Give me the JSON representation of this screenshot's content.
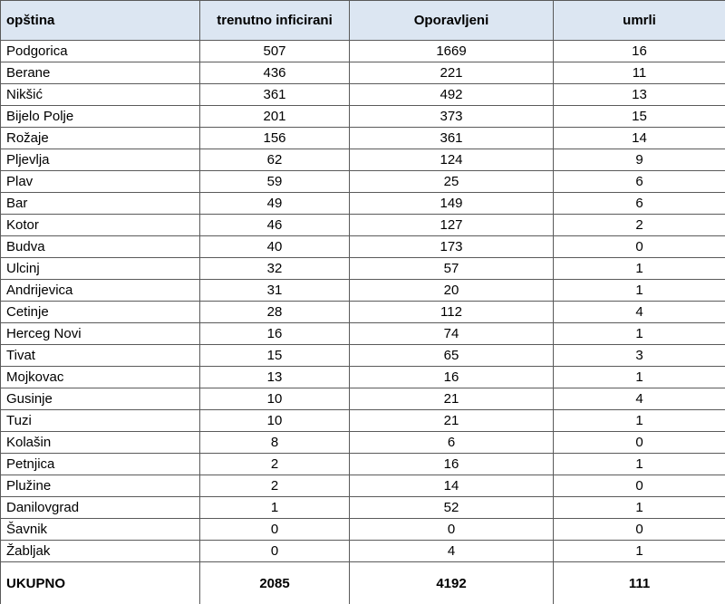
{
  "table": {
    "header": [
      "opština",
      "trenutno inficirani",
      "Oporavljeni",
      "umrli"
    ],
    "rows": [
      [
        "Podgorica",
        507,
        1669,
        16
      ],
      [
        "Berane",
        436,
        221,
        11
      ],
      [
        "Nikšić",
        361,
        492,
        13
      ],
      [
        "Bijelo Polje",
        201,
        373,
        15
      ],
      [
        "Rožaje",
        156,
        361,
        14
      ],
      [
        "Pljevlja",
        62,
        124,
        9
      ],
      [
        "Plav",
        59,
        25,
        6
      ],
      [
        "Bar",
        49,
        149,
        6
      ],
      [
        "Kotor",
        46,
        127,
        2
      ],
      [
        "Budva",
        40,
        173,
        0
      ],
      [
        "Ulcinj",
        32,
        57,
        1
      ],
      [
        "Andrijevica",
        31,
        20,
        1
      ],
      [
        "Cetinje",
        28,
        112,
        4
      ],
      [
        "Herceg Novi",
        16,
        74,
        1
      ],
      [
        "Tivat",
        15,
        65,
        3
      ],
      [
        "Mojkovac",
        13,
        16,
        1
      ],
      [
        "Gusinje",
        10,
        21,
        4
      ],
      [
        "Tuzi",
        10,
        21,
        1
      ],
      [
        "Kolašin",
        8,
        6,
        0
      ],
      [
        "Petnjica",
        2,
        16,
        1
      ],
      [
        "Plužine",
        2,
        14,
        0
      ],
      [
        "Danilovgrad",
        1,
        52,
        1
      ],
      [
        "Šavnik",
        0,
        0,
        0
      ],
      [
        "Žabljak",
        0,
        4,
        1
      ]
    ],
    "total": [
      "UKUPNO",
      2085,
      4192,
      111
    ]
  }
}
